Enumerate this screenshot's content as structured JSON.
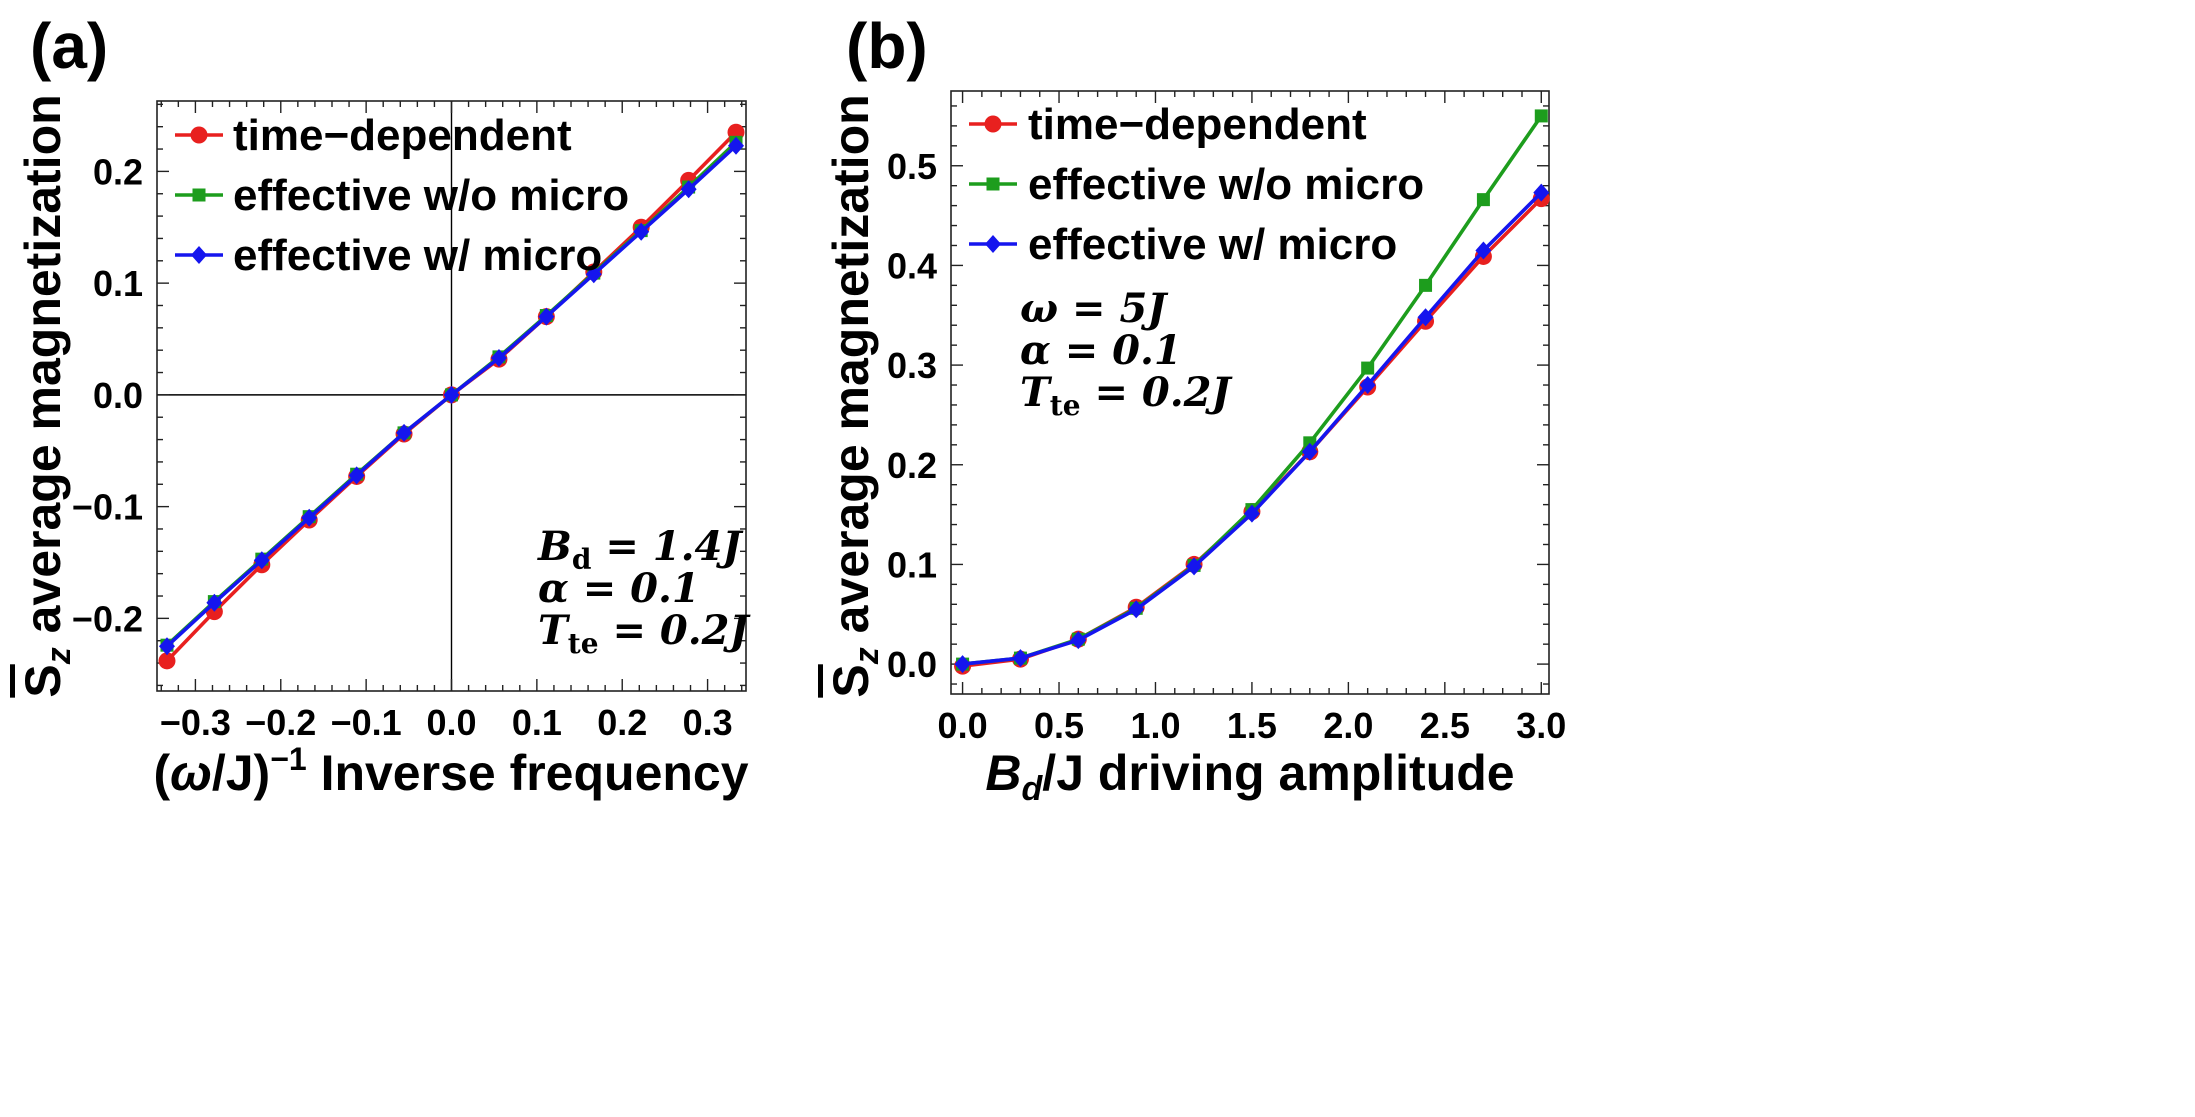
{
  "chart_data": [
    {
      "panel_label": "(a)",
      "type": "line",
      "xlabel": "(ω/J)⁻¹ Inverse frequency",
      "xlabel_parts": {
        "pre": "(",
        "omega": "ω",
        "mid": "/J)",
        "sup": "−1",
        "post": " Inverse frequency"
      },
      "ylabel": "S̄z average magnetization",
      "ylabel_parts": {
        "S": "S",
        "sub": "z",
        "rest": " average magnetization"
      },
      "xlim": [
        -0.345,
        0.345
      ],
      "ylim": [
        -0.265,
        0.263
      ],
      "xticks": [
        -0.3,
        -0.2,
        -0.1,
        0.0,
        0.1,
        0.2,
        0.3
      ],
      "xtick_labels": [
        "−0.3",
        "−0.2",
        "−0.1",
        "0.0",
        "0.1",
        "0.2",
        "0.3"
      ],
      "yticks": [
        -0.2,
        -0.1,
        0.0,
        0.1,
        0.2
      ],
      "ytick_labels": [
        "−0.2",
        "−0.1",
        "0.0",
        "0.1",
        "0.2"
      ],
      "zero_lines": true,
      "legend_position": "top-left",
      "annotation_position": "bottom-right",
      "annotation": [
        "B_d = 1.4J",
        "α = 0.1",
        "T_te = 0.2J"
      ],
      "annotation_parts": [
        {
          "var": "B",
          "sub": "d",
          "rest": " = 1.4J"
        },
        {
          "var": "α",
          "sub": "",
          "rest": " = 0.1"
        },
        {
          "var": "T",
          "sub": "te",
          "rest": " = 0.2J"
        }
      ],
      "series": [
        {
          "name": "time−dependent",
          "color": "#e8201f",
          "marker": "circle",
          "x": [
            -0.3333,
            -0.2778,
            -0.2222,
            -0.1667,
            -0.1111,
            -0.0556,
            0.0,
            0.0556,
            0.1111,
            0.1667,
            0.2222,
            0.2778,
            0.3333
          ],
          "y": [
            -0.238,
            -0.194,
            -0.152,
            -0.112,
            -0.073,
            -0.035,
            0.0,
            0.032,
            0.07,
            0.11,
            0.15,
            0.192,
            0.235
          ]
        },
        {
          "name": "effective w/o micro",
          "color": "#1d9d1d",
          "marker": "square",
          "x": [
            -0.3333,
            -0.2778,
            -0.2222,
            -0.1667,
            -0.1111,
            -0.0556,
            0.0,
            0.0556,
            0.1111,
            0.1667,
            0.2222,
            0.2778,
            0.3333
          ],
          "y": [
            -0.224,
            -0.185,
            -0.147,
            -0.109,
            -0.071,
            -0.034,
            0.0,
            0.034,
            0.071,
            0.109,
            0.147,
            0.186,
            0.226
          ]
        },
        {
          "name": "effective w/ micro",
          "color": "#1515ee",
          "marker": "diamond",
          "x": [
            -0.3333,
            -0.2778,
            -0.2222,
            -0.1667,
            -0.1111,
            -0.0556,
            0.0,
            0.0556,
            0.1111,
            0.1667,
            0.2222,
            0.2778,
            0.3333
          ],
          "y": [
            -0.225,
            -0.186,
            -0.148,
            -0.11,
            -0.072,
            -0.034,
            0.0,
            0.033,
            0.07,
            0.108,
            0.146,
            0.184,
            0.223
          ]
        }
      ]
    },
    {
      "panel_label": "(b)",
      "type": "line",
      "xlabel": "Bd/J driving amplitude",
      "xlabel_parts": {
        "var": "B",
        "sub": "d",
        "rest": "/J driving amplitude"
      },
      "ylabel": "S̄z average magnetization",
      "ylabel_parts": {
        "S": "S",
        "sub": "z",
        "rest": " average magnetization"
      },
      "xlim": [
        -0.06,
        3.04
      ],
      "ylim": [
        -0.03,
        0.575
      ],
      "xticks": [
        0.0,
        0.5,
        1.0,
        1.5,
        2.0,
        2.5,
        3.0
      ],
      "xtick_labels": [
        "0.0",
        "0.5",
        "1.0",
        "1.5",
        "2.0",
        "2.5",
        "3.0"
      ],
      "yticks": [
        0.0,
        0.1,
        0.2,
        0.3,
        0.4,
        0.5
      ],
      "ytick_labels": [
        "0.0",
        "0.1",
        "0.2",
        "0.3",
        "0.4",
        "0.5"
      ],
      "zero_lines": false,
      "legend_position": "top-left",
      "annotation_position": "upper-left",
      "annotation": [
        "ω = 5J",
        "α = 0.1",
        "T_te = 0.2J"
      ],
      "annotation_parts": [
        {
          "var": "ω",
          "sub": "",
          "rest": " = 5J"
        },
        {
          "var": "α",
          "sub": "",
          "rest": " = 0.1"
        },
        {
          "var": "T",
          "sub": "te",
          "rest": " = 0.2J"
        }
      ],
      "series": [
        {
          "name": "time−dependent",
          "color": "#e8201f",
          "marker": "circle",
          "x": [
            0.0,
            0.3,
            0.6,
            0.9,
            1.2,
            1.5,
            1.8,
            2.1,
            2.4,
            2.7,
            3.0
          ],
          "y": [
            -0.002,
            0.005,
            0.025,
            0.057,
            0.1,
            0.153,
            0.213,
            0.278,
            0.344,
            0.409,
            0.467
          ]
        },
        {
          "name": "effective w/o micro",
          "color": "#1d9d1d",
          "marker": "square",
          "x": [
            0.0,
            0.3,
            0.6,
            0.9,
            1.2,
            1.5,
            1.8,
            2.1,
            2.4,
            2.7,
            3.0
          ],
          "y": [
            0.0,
            0.006,
            0.025,
            0.056,
            0.099,
            0.155,
            0.222,
            0.297,
            0.38,
            0.466,
            0.55
          ]
        },
        {
          "name": "effective w/ micro",
          "color": "#1515ee",
          "marker": "diamond",
          "x": [
            0.0,
            0.3,
            0.6,
            0.9,
            1.2,
            1.5,
            1.8,
            2.1,
            2.4,
            2.7,
            3.0
          ],
          "y": [
            0.0,
            0.006,
            0.024,
            0.055,
            0.098,
            0.151,
            0.213,
            0.28,
            0.348,
            0.415,
            0.473
          ]
        }
      ]
    }
  ]
}
